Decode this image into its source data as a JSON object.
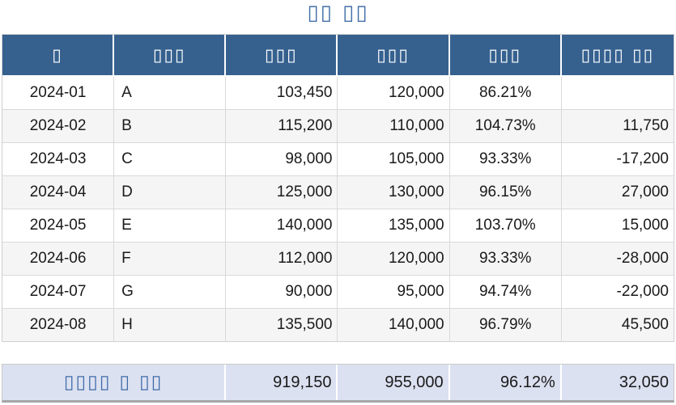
{
  "title": "▯▯ ▯▯",
  "colors": {
    "title_text": "#4470a8",
    "header_bg": "#36618f",
    "header_text": "#ffffff",
    "row_alt_bg": "#f5f5f5",
    "grid_border": "#d9d9d9",
    "summary_bg": "#dce1f1",
    "summary_label_text": "#3f6ba8",
    "summary_bottom_border": "#a6a6a6"
  },
  "table": {
    "headers": [
      "▯",
      "▯▯▯",
      "▯▯▯",
      "▯▯▯",
      "▯▯▯",
      "▯▯▯▯ ▯▯"
    ],
    "rows": [
      [
        "2024-01",
        "A",
        "103,450",
        "120,000",
        "86.21%",
        ""
      ],
      [
        "2024-02",
        "B",
        "115,200",
        "110,000",
        "104.73%",
        "11,750"
      ],
      [
        "2024-03",
        "C",
        "98,000",
        "105,000",
        "93.33%",
        "-17,200"
      ],
      [
        "2024-04",
        "D",
        "125,000",
        "130,000",
        "96.15%",
        "27,000"
      ],
      [
        "2024-05",
        "E",
        "140,000",
        "135,000",
        "103.70%",
        "15,000"
      ],
      [
        "2024-06",
        "F",
        "112,000",
        "120,000",
        "93.33%",
        "-28,000"
      ],
      [
        "2024-07",
        "G",
        "90,000",
        "95,000",
        "94.74%",
        "-22,000"
      ],
      [
        "2024-08",
        "H",
        "135,500",
        "140,000",
        "96.79%",
        "45,500"
      ]
    ]
  },
  "summary": {
    "label": "▯▯▯▯ ▯ ▯▯",
    "values": [
      "919,150",
      "955,000",
      "96.12%",
      "32,050"
    ]
  }
}
